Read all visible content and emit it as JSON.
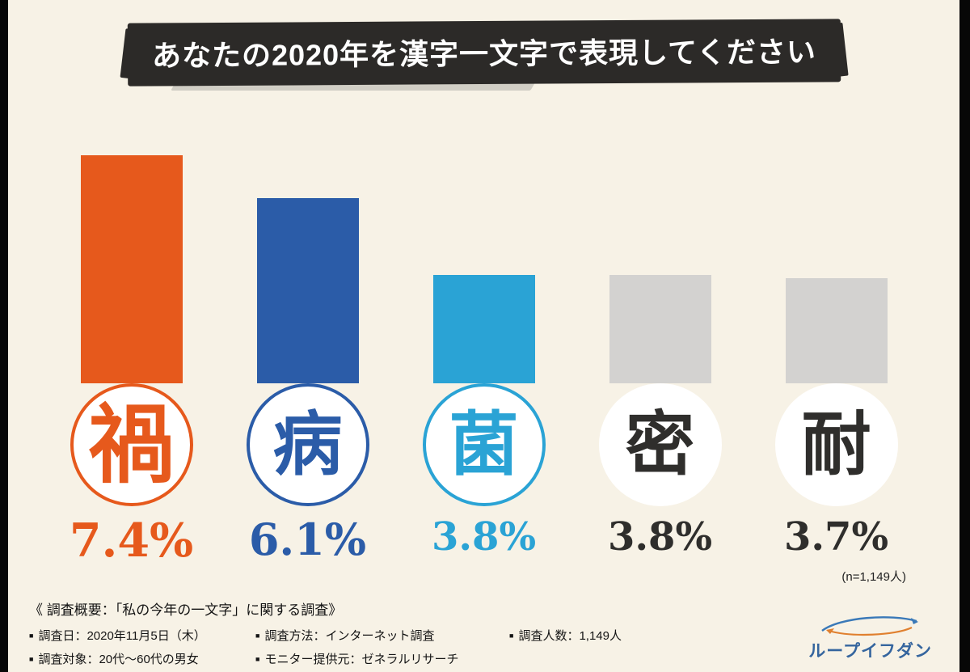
{
  "title": "あなたの2020年を漢字一文字で表現してください",
  "chart_data": {
    "type": "bar",
    "title": "あなたの2020年を漢字一文字で表現してください",
    "categories": [
      "禍",
      "病",
      "菌",
      "密",
      "耐"
    ],
    "values": [
      7.4,
      6.1,
      3.8,
      3.8,
      3.7
    ],
    "value_labels": [
      "7.4%",
      "6.1%",
      "3.8%",
      "3.8%",
      "3.7%"
    ],
    "bar_colors": [
      "#e6591c",
      "#2b5ca8",
      "#2aa3d5",
      "#d3d2d0",
      "#d3d2d0"
    ],
    "label_colors": [
      "#e6591c",
      "#2b5ca8",
      "#2aa3d5",
      "#2f2e2c",
      "#2f2e2c"
    ],
    "circle_border_colors": [
      "#e6591c",
      "#2b5ca8",
      "#2aa3d5",
      "#ffffff",
      "#ffffff"
    ],
    "n_label": "(n=1,149人)",
    "unit": "%",
    "ylim": [
      0,
      8
    ],
    "grid": "off",
    "legend": "none"
  },
  "survey": {
    "heading": "《 調査概要：「私の今年の一文字」に関する調査》",
    "bullet": "■",
    "row1": [
      "調査日：2020年11月5日（木）",
      "調査方法：インターネット調査",
      "調査人数：1,149人"
    ],
    "row2": [
      "調査対象：20代～60代の男女",
      "モニター提供元：ゼネラルリサーチ"
    ]
  },
  "logo": {
    "text": "ループイフダン"
  }
}
